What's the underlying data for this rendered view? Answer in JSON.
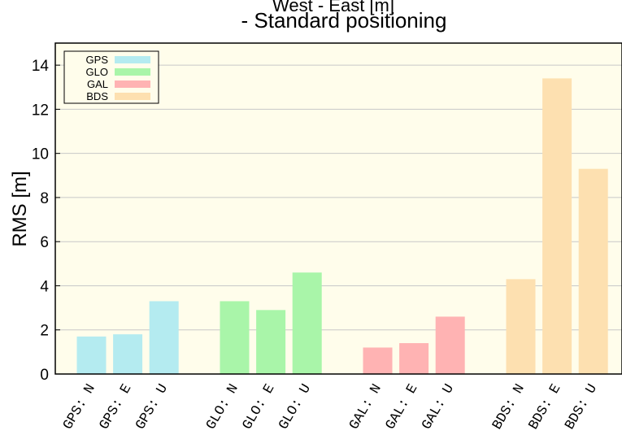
{
  "chart_data": {
    "type": "bar",
    "title_top": "West - East [m]",
    "title": "- Standard positioning",
    "ylabel": "RMS [m]",
    "xlabel": "",
    "ylim": [
      0,
      15
    ],
    "yticks": [
      0,
      2,
      4,
      6,
      8,
      10,
      12,
      14
    ],
    "grid": true,
    "legend_position": "top-left",
    "background": "#fffdeb",
    "groups": [
      {
        "name": "GPS",
        "color": "#b4ebf0",
        "categories": [
          "GPS: N",
          "GPS: E",
          "GPS: U"
        ],
        "values": [
          1.7,
          1.8,
          3.3
        ]
      },
      {
        "name": "GLO",
        "color": "#a9f5a9",
        "categories": [
          "GLO: N",
          "GLO: E",
          "GLO: U"
        ],
        "values": [
          3.3,
          2.9,
          4.6
        ]
      },
      {
        "name": "GAL",
        "color": "#ffb3b3",
        "categories": [
          "GAL: N",
          "GAL: E",
          "GAL: U"
        ],
        "values": [
          1.2,
          1.4,
          2.6
        ]
      },
      {
        "name": "BDS",
        "color": "#fde0b0",
        "categories": [
          "BDS: N",
          "BDS: E",
          "BDS: U"
        ],
        "values": [
          4.3,
          13.4,
          9.3
        ]
      }
    ]
  }
}
